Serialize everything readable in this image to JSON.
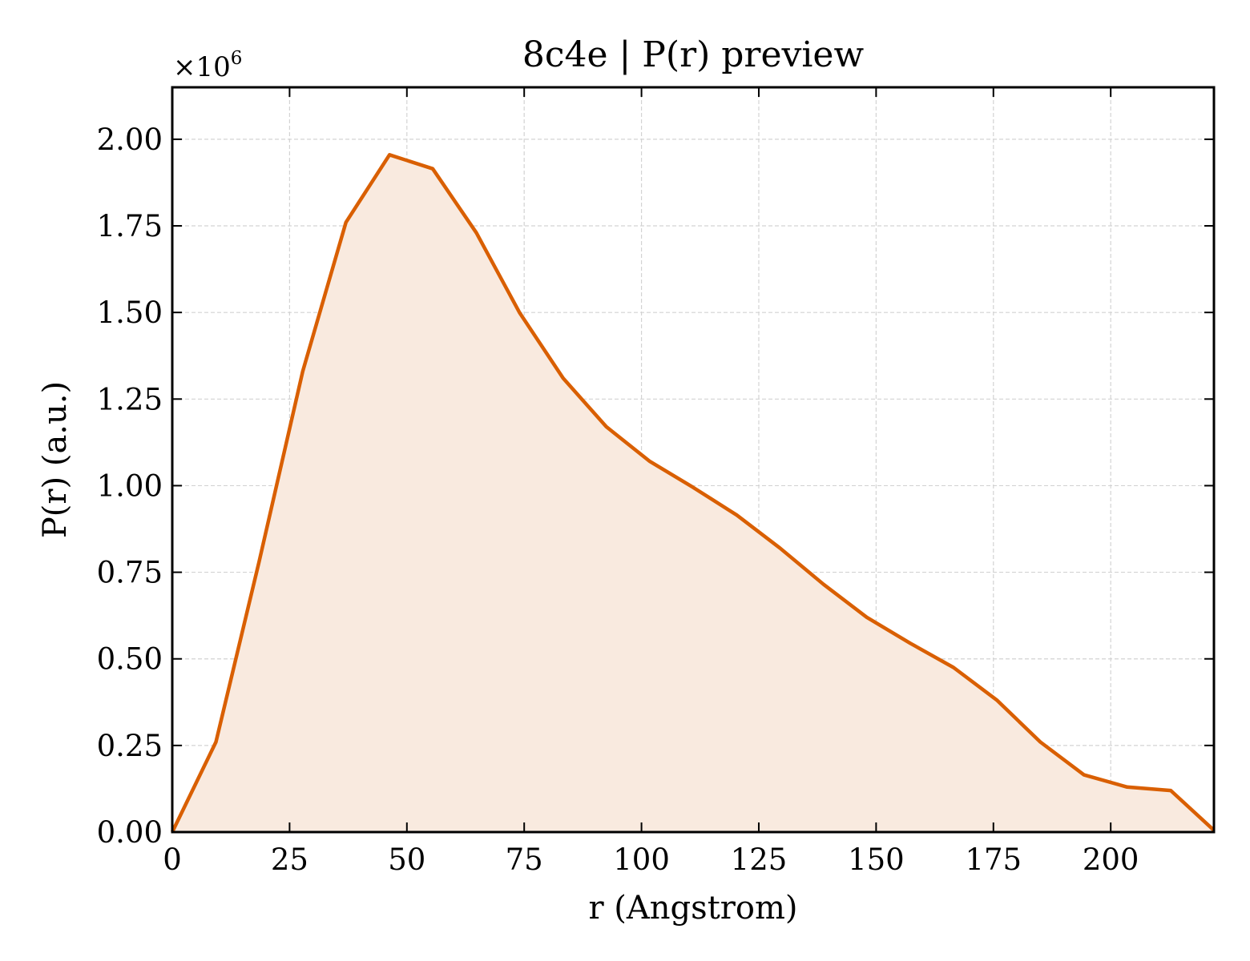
{
  "chart_data": {
    "type": "area",
    "title": "8c4e | P(r) preview",
    "xlabel": "r (Angstrom)",
    "ylabel": "P(r) (a.u.)",
    "y_multiplier": "×10",
    "y_exponent": "6",
    "xlim": [
      0,
      222
    ],
    "ylim": [
      0,
      2.15
    ],
    "y_scale": 1000000,
    "x_ticks": [
      0,
      25,
      50,
      75,
      100,
      125,
      150,
      175,
      200
    ],
    "x_tick_labels": [
      "0",
      "25",
      "50",
      "75",
      "100",
      "125",
      "150",
      "175",
      "200"
    ],
    "y_ticks": [
      0,
      0.25,
      0.5,
      0.75,
      1.0,
      1.25,
      1.5,
      1.75,
      2.0
    ],
    "y_tick_labels": [
      "0.00",
      "0.25",
      "0.50",
      "0.75",
      "1.00",
      "1.25",
      "1.50",
      "1.75",
      "2.00"
    ],
    "grid": true,
    "line_color": "#d95f02",
    "fill_color": "#f9eadf",
    "series": [
      {
        "x": [
          0,
          9.3,
          18.5,
          27.8,
          37.0,
          46.3,
          55.5,
          64.8,
          74.0,
          83.3,
          92.5,
          101.8,
          111.0,
          120.3,
          129.5,
          138.8,
          148.0,
          157.3,
          166.5,
          175.8,
          185.0,
          194.3,
          203.5,
          212.8,
          222.0
        ],
        "values": [
          0,
          0.26,
          0.78,
          1.33,
          1.76,
          1.955,
          1.915,
          1.73,
          1.5,
          1.31,
          1.17,
          1.07,
          0.995,
          0.915,
          0.82,
          0.715,
          0.62,
          0.545,
          0.475,
          0.38,
          0.26,
          0.165,
          0.13,
          0.12,
          0.005
        ]
      }
    ]
  }
}
